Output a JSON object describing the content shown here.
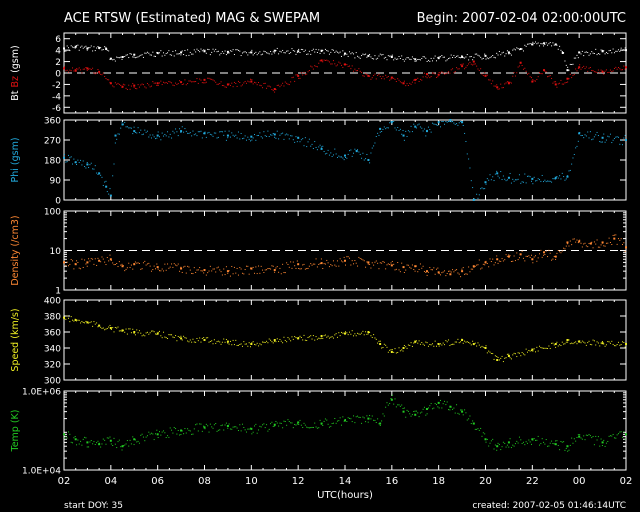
{
  "header": {
    "title": "ACE RTSW (Estimated) MAG & SWEPAM",
    "begin": "Begin: 2007-02-04 02:00:00UTC"
  },
  "footer": {
    "start_doy": "start DOY:  35",
    "created": "created: 2007-02-05 01:46:14UTC",
    "xlabel": "UTC(hours)"
  },
  "colors": {
    "background": "#000000",
    "axes": "#ffffff",
    "bt": "#ffffff",
    "bz": "#e01010",
    "phi": "#22aadd",
    "density": "#ff8833",
    "speed": "#eeee22",
    "temp": "#22cc22"
  },
  "chart_data": [
    {
      "type": "scatter",
      "panel": "mag",
      "ylabel_parts": [
        {
          "text": "Bt",
          "color": "#ffffff"
        },
        {
          "text": "Bz",
          "color": "#e01010"
        },
        {
          "text": "(gsm)",
          "color": "#ffffff"
        }
      ],
      "ylim": [
        -7,
        7
      ],
      "yticks": [
        "-6",
        "-4",
        "-2",
        "0",
        "2",
        "4",
        "6"
      ],
      "ytick_values": [
        -6,
        -4,
        -2,
        0,
        2,
        4,
        6
      ],
      "zero_line": true,
      "xlim": [
        2,
        26
      ],
      "xticks": [
        "02",
        "04",
        "06",
        "08",
        "10",
        "12",
        "14",
        "16",
        "18",
        "20",
        "22",
        "00",
        "02"
      ],
      "series": [
        {
          "name": "Bt",
          "color": "#ffffff",
          "x": [
            2.0,
            2.5,
            3.0,
            3.5,
            3.8,
            4.0,
            4.5,
            5.0,
            6.0,
            7.0,
            8.0,
            9.0,
            10.0,
            11.0,
            12.0,
            13.0,
            14.0,
            15.0,
            16.0,
            17.0,
            18.0,
            19.0,
            20.0,
            21.0,
            21.5,
            22.0,
            22.5,
            23.0,
            23.3,
            23.5,
            24.0,
            25.0,
            26.0
          ],
          "y": [
            4.3,
            4.6,
            4.3,
            4.4,
            4.2,
            2.5,
            2.8,
            3.2,
            3.5,
            3.6,
            3.8,
            3.7,
            3.6,
            3.9,
            3.8,
            3.9,
            3.4,
            3.0,
            2.8,
            2.4,
            2.6,
            2.8,
            3.0,
            3.6,
            4.2,
            5.0,
            5.2,
            5.0,
            3.5,
            0.5,
            3.6,
            3.8,
            4.0
          ]
        },
        {
          "name": "Bz",
          "color": "#e01010",
          "x": [
            2.0,
            2.5,
            3.0,
            3.5,
            4.0,
            4.5,
            5.0,
            6.0,
            7.0,
            8.0,
            9.0,
            10.0,
            11.0,
            12.0,
            13.0,
            14.0,
            15.0,
            16.0,
            16.5,
            17.0,
            17.5,
            18.0,
            19.0,
            19.5,
            20.0,
            20.5,
            21.0,
            21.5,
            22.0,
            22.5,
            23.0,
            23.5,
            24.0,
            25.0,
            26.0
          ],
          "y": [
            0.8,
            0.4,
            0.8,
            0.2,
            -1.8,
            -2.4,
            -2.2,
            -1.8,
            -1.6,
            -1.2,
            -2.0,
            -1.5,
            -2.8,
            -0.5,
            2.2,
            1.5,
            -0.5,
            -0.8,
            -1.8,
            -1.2,
            -0.2,
            -0.3,
            1.2,
            2.0,
            -0.5,
            -2.5,
            -1.8,
            1.8,
            -1.5,
            0.5,
            -2.0,
            -1.0,
            1.0,
            0.2,
            1.0
          ]
        }
      ]
    },
    {
      "type": "scatter",
      "panel": "phi",
      "ylabel": "Phi (gsm)",
      "ylim": [
        0,
        360
      ],
      "yticks": [
        "0",
        "90",
        "180",
        "270",
        "360"
      ],
      "ytick_values": [
        0,
        90,
        180,
        270,
        360
      ],
      "xlim": [
        2,
        26
      ],
      "series": [
        {
          "color": "#22aadd",
          "x": [
            2.0,
            2.5,
            3.0,
            3.5,
            3.8,
            4.0,
            4.2,
            4.5,
            5.0,
            6.0,
            7.0,
            8.0,
            9.0,
            10.0,
            11.0,
            12.0,
            13.0,
            14.0,
            14.5,
            15.0,
            15.5,
            16.0,
            16.5,
            17.0,
            17.5,
            18.0,
            18.5,
            19.0,
            19.5,
            20.0,
            20.5,
            21.0,
            22.0,
            23.0,
            23.5,
            24.0,
            25.0,
            26.0
          ],
          "y": [
            190,
            170,
            160,
            120,
            60,
            20,
            290,
            340,
            310,
            290,
            310,
            300,
            290,
            285,
            295,
            280,
            230,
            200,
            220,
            180,
            320,
            350,
            290,
            330,
            310,
            350,
            360,
            350,
            0,
            80,
            120,
            100,
            95,
            100,
            105,
            300,
            280,
            270
          ]
        }
      ]
    },
    {
      "type": "scatter",
      "panel": "density",
      "ylabel": "Density (/cm3)",
      "yscale": "log",
      "ylim": [
        1,
        100
      ],
      "yticks": [
        "1",
        "10",
        "100"
      ],
      "ytick_values": [
        1,
        10,
        100
      ],
      "ref_line": 10,
      "xlim": [
        2,
        26
      ],
      "series": [
        {
          "color": "#ff8833",
          "x": [
            2.0,
            2.5,
            3.0,
            3.5,
            4.0,
            4.5,
            5.0,
            6.0,
            7.0,
            8.0,
            9.0,
            10.0,
            11.0,
            12.0,
            13.0,
            14.0,
            15.0,
            16.0,
            16.5,
            17.0,
            17.5,
            18.0,
            18.5,
            19.0,
            19.5,
            20.0,
            20.5,
            21.0,
            21.5,
            22.0,
            22.5,
            23.0,
            23.5,
            24.0,
            24.5,
            25.0,
            25.5,
            26.0
          ],
          "y": [
            5.0,
            4.5,
            5.0,
            5.5,
            6.0,
            4.0,
            4.5,
            3.8,
            3.5,
            3.2,
            3.0,
            3.5,
            3.2,
            4.5,
            4.8,
            5.5,
            5.0,
            4.2,
            3.8,
            4.0,
            3.0,
            2.8,
            2.5,
            3.0,
            4.0,
            5.0,
            6.0,
            7.0,
            8.0,
            6.0,
            9.0,
            7.0,
            16.0,
            17.0,
            15.0,
            16.0,
            20.0,
            12.0
          ]
        }
      ]
    },
    {
      "type": "scatter",
      "panel": "speed",
      "ylabel": "Speed (km/s)",
      "ylim": [
        300,
        400
      ],
      "yticks": [
        "300",
        "320",
        "340",
        "360",
        "380",
        "400"
      ],
      "ytick_values": [
        300,
        320,
        340,
        360,
        380,
        400
      ],
      "xlim": [
        2,
        26
      ],
      "series": [
        {
          "color": "#eeee22",
          "x": [
            2.0,
            2.5,
            3.0,
            3.5,
            4.0,
            4.5,
            5.0,
            6.0,
            7.0,
            8.0,
            9.0,
            10.0,
            11.0,
            12.0,
            13.0,
            14.0,
            15.0,
            15.5,
            16.0,
            16.5,
            17.0,
            18.0,
            19.0,
            19.5,
            20.0,
            20.5,
            21.0,
            22.0,
            23.0,
            23.5,
            24.0,
            25.0,
            26.0
          ],
          "y": [
            378,
            375,
            372,
            368,
            365,
            362,
            360,
            358,
            352,
            350,
            348,
            345,
            350,
            352,
            355,
            358,
            360,
            345,
            335,
            340,
            348,
            345,
            350,
            345,
            340,
            325,
            330,
            338,
            345,
            350,
            348,
            346,
            345
          ]
        }
      ]
    },
    {
      "type": "scatter",
      "panel": "temp",
      "ylabel": "Temp (K)",
      "yscale": "log",
      "ylim": [
        10000,
        1000000
      ],
      "yticks": [
        "1.0E+04",
        "1.0E+06"
      ],
      "ytick_values": [
        10000,
        1000000
      ],
      "xlim": [
        2,
        26
      ],
      "series": [
        {
          "color": "#22cc22",
          "x": [
            2.0,
            2.5,
            3.0,
            3.5,
            4.0,
            4.5,
            5.0,
            6.0,
            7.0,
            8.0,
            9.0,
            10.0,
            11.0,
            12.0,
            13.0,
            14.0,
            15.0,
            15.5,
            16.0,
            16.5,
            17.0,
            17.5,
            18.0,
            18.5,
            19.0,
            19.5,
            20.0,
            20.5,
            21.0,
            22.0,
            23.0,
            23.5,
            24.0,
            25.0,
            26.0
          ],
          "y": [
            80000,
            60000,
            50000,
            45000,
            55000,
            40000,
            60000,
            80000,
            100000,
            120000,
            130000,
            110000,
            140000,
            160000,
            150000,
            180000,
            200000,
            150000,
            600000,
            300000,
            250000,
            350000,
            500000,
            400000,
            300000,
            150000,
            60000,
            40000,
            50000,
            60000,
            45000,
            40000,
            70000,
            50000,
            80000
          ]
        }
      ]
    }
  ]
}
